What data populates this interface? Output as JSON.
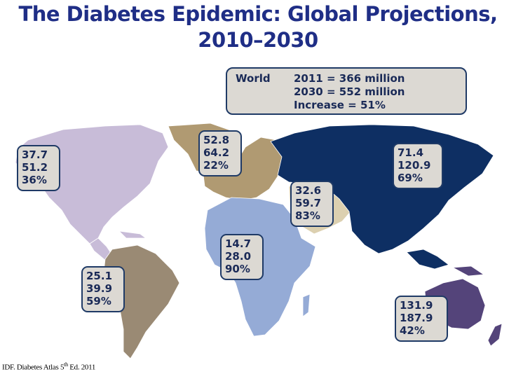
{
  "title": {
    "line1": "The Diabetes Epidemic: Global Projections,",
    "line2": "2010–2030"
  },
  "world": {
    "label": "World",
    "line1": "2011 = 366 million",
    "line2": "2030 = 552 million",
    "line3": "Increase = 51%"
  },
  "regions": {
    "north_america": {
      "v2011": "37.7",
      "v2030": "51.2",
      "increase": "36%",
      "color": "#c8bcd8"
    },
    "europe": {
      "v2011": "52.8",
      "v2030": "64.2",
      "increase": "22%",
      "color": "#b09a72"
    },
    "asia": {
      "v2011": "71.4",
      "v2030": "120.9",
      "increase": "69%",
      "color": "#0e2f63"
    },
    "middle_east": {
      "v2011": "32.6",
      "v2030": "59.7",
      "increase": "83%",
      "color": "#dcd0b0"
    },
    "africa": {
      "v2011": "14.7",
      "v2030": "28.0",
      "increase": "90%",
      "color": "#95abd6"
    },
    "south_america": {
      "v2011": "25.1",
      "v2030": "39.9",
      "increase": "59%",
      "color": "#9a8a74"
    },
    "oceania": {
      "v2011": "131.9",
      "v2030": "187.9",
      "increase": "42%",
      "color": "#54447a"
    }
  },
  "source": {
    "prefix": "IDF. Diabetes Atlas 5",
    "sup": "th",
    "suffix": " Ed. 2011"
  }
}
